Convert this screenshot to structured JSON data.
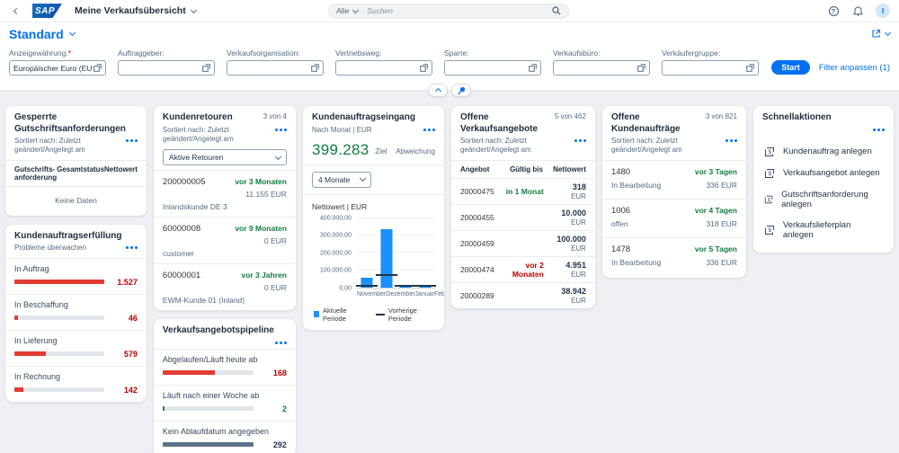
{
  "shellbar": {
    "app_title": "Meine Verkaufsübersicht",
    "search_scope": "Alle",
    "search_placeholder": "Suchen",
    "avatar_initial": "I",
    "help_glyph": "?"
  },
  "variant": {
    "title": "Standard"
  },
  "filterbar": {
    "fields": [
      {
        "label": "Anzeigewährung:",
        "required": true,
        "value": "Europäischer Euro (EUR)"
      },
      {
        "label": "Auftraggeber:",
        "required": false,
        "value": ""
      },
      {
        "label": "Verkaufsorganisation:",
        "required": false,
        "value": ""
      },
      {
        "label": "Vertriebsweg:",
        "required": false,
        "value": ""
      },
      {
        "label": "Sparte:",
        "required": false,
        "value": ""
      },
      {
        "label": "Verkaufsbüro:",
        "required": false,
        "value": ""
      },
      {
        "label": "Verkäufergruppe:",
        "required": false,
        "value": ""
      }
    ],
    "start_label": "Start",
    "adapt_filters_label": "Filter anpassen (1)"
  },
  "cards": {
    "blocked_credits": {
      "title": "Gesperrte Gutschriftsanforderungen",
      "subtitle": "Sortiert nach: Zuletzt geändert/Angelegt am",
      "columns": [
        "Gutschrifts- anforderung",
        "Gesamtstatus",
        "Nettowert"
      ],
      "empty_text": "Keine Daten"
    },
    "fulfillment": {
      "title": "Kundenauftragserfüllung",
      "subtitle": "Probleme überwachen",
      "rows": [
        {
          "label": "In Auftrag",
          "value": "1.527",
          "pct": 100,
          "color": "negative"
        },
        {
          "label": "In Beschaffung",
          "value": "46",
          "pct": 4,
          "color": "negative"
        },
        {
          "label": "In Lieferung",
          "value": "579",
          "pct": 35,
          "color": "negative"
        },
        {
          "label": "In Rechnung",
          "value": "142",
          "pct": 10,
          "color": "negative"
        }
      ]
    },
    "returns": {
      "title": "Kundenretouren",
      "counter": "3 von 4",
      "subtitle": "Sortiert nach: Zuletzt geändert/Angelegt am",
      "filter_value": "Aktive Retouren",
      "items": [
        {
          "id": "200000005",
          "age": "vor 3 Monaten",
          "amount": "11.155 EUR",
          "customer": "Inlandskunde DE 3"
        },
        {
          "id": "60000008",
          "age": "vor 9 Monaten",
          "amount": "0 EUR",
          "customer": "customer"
        },
        {
          "id": "60000001",
          "age": "vor 3 Jahren",
          "amount": "0 EUR",
          "customer": "EWM-Kunde 01 (Inland)"
        }
      ]
    },
    "pipeline": {
      "title": "Verkaufsangebotspipeline",
      "rows": [
        {
          "label": "Abgelaufen/Läuft heute ab",
          "value": "168",
          "pct": 57,
          "color": "negative"
        },
        {
          "label": "Läuft nach einer Woche ab",
          "value": "2",
          "pct": 2,
          "color": "positive"
        },
        {
          "label": "Kein Ablaufdatum angegeben",
          "value": "292",
          "pct": 100,
          "color": "neutral"
        }
      ]
    },
    "incoming_orders": {
      "title": "Kundenauftragseingang",
      "subtitle": "Nach Monat | EUR",
      "kpi_value": "399.283",
      "target_label": "Ziel",
      "deviation_label": "Abweichung",
      "period_filter": "4 Monate",
      "axis_title": "Nettowert | EUR",
      "legend": [
        "Aktuelle Periode",
        "Vorherige Periode"
      ]
    },
    "open_quotations": {
      "title": "Offene Verkaufsangebote",
      "counter": "5 von 462",
      "subtitle": "Sortiert nach: Zuletzt geändert/Angelegt am",
      "columns": [
        "Angebot",
        "Gültig bis",
        "Nettowert"
      ],
      "rows": [
        {
          "id": "20000475",
          "due": "in 1 Monat",
          "due_state": "positive",
          "value": "318",
          "currency": "EUR"
        },
        {
          "id": "20000455",
          "due": "",
          "due_state": "none",
          "value": "10.000",
          "currency": "EUR"
        },
        {
          "id": "20000459",
          "due": "",
          "due_state": "none",
          "value": "100.000",
          "currency": "EUR"
        },
        {
          "id": "20000474",
          "due": "vor 2 Monaten",
          "due_state": "negative",
          "value": "4.951",
          "currency": "EUR"
        },
        {
          "id": "20000289",
          "due": "",
          "due_state": "none",
          "value": "38.942",
          "currency": "EUR"
        }
      ]
    },
    "open_orders": {
      "title": "Offene Kundenaufträge",
      "counter": "3 von 821",
      "subtitle": "Sortiert nach: Zuletzt geändert/Angelegt am",
      "items": [
        {
          "id": "1480",
          "age": "vor 3 Tagen",
          "status": "In Bearbeitung",
          "amount": "336 EUR"
        },
        {
          "id": "1006",
          "age": "vor 4 Tagen",
          "status": "offen",
          "amount": "318 EUR"
        },
        {
          "id": "1478",
          "age": "vor 5 Tagen",
          "status": "In Bearbeitung",
          "amount": "336 EUR"
        }
      ]
    },
    "quick_actions": {
      "title": "Schnellaktionen",
      "actions": [
        {
          "label": "Kundenauftrag anlegen"
        },
        {
          "label": "Verkaufsangebot anlegen"
        },
        {
          "label": "Gutschriftsanforderung anlegen"
        },
        {
          "label": "Verkaufslieferplan anlegen"
        }
      ]
    }
  },
  "chart_data": {
    "type": "bar",
    "title": "Kundenauftragseingang – Nettowert | EUR",
    "categories": [
      "November",
      "Dezember",
      "Januar",
      "Februar"
    ],
    "series": [
      {
        "name": "Aktuelle Periode",
        "values": [
          55000,
          335000,
          3500,
          6500
        ]
      },
      {
        "name": "Vorherige Periode",
        "values": [
          2500,
          65000,
          2500,
          7000
        ]
      }
    ],
    "ylim": [
      0,
      400000
    ],
    "yticks": [
      "0,00",
      "100.000,00",
      "200.000,00",
      "300.000,00",
      "400.000,00"
    ],
    "xlabel": "",
    "ylabel": "Nettowert | EUR",
    "legend_position": "bottom",
    "grid": true
  }
}
